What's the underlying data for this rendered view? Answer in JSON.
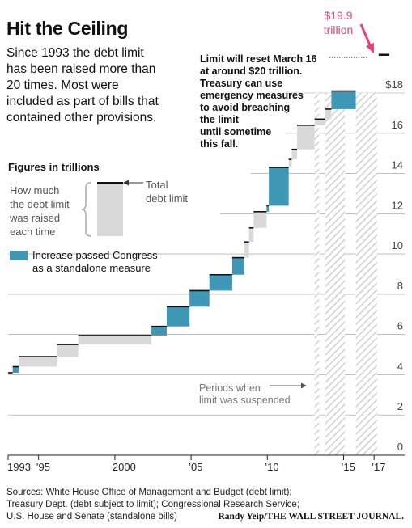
{
  "header": {
    "title": "Hit the Ceiling",
    "subtitle": "Since 1993 the debt limit\nhas been raised more than\n20 times. Most were\nincluded as part of bills that\ncontained other provisions."
  },
  "legend": {
    "units": "Figures in trillions",
    "raise_label": "How much\nthe debt limit\nwas raised\neach time",
    "total_label": "Total\ndebt limit",
    "standalone_label": "Increase passed Congress\nas a standalone measure"
  },
  "annotations": {
    "note": "Limit will reset March 16\nat around $20 trillion.\nTreasury can use\nemergency measures\nto avoid breaching\nthe limit\nuntil sometime\nthis fall.",
    "callout": "$19.9\ntrillion",
    "suspended": "Periods when\nlimit was suspended"
  },
  "footer": {
    "sources": "Sources: White House Office of Management and Budget (debt limit);\nTreasury Dept. (debt subject to limit); Congressional Research Service;\nU.S. House and Senate (standalone bills)",
    "credit": "Randy Yeip/THE WALL STREET JOURNAL."
  },
  "colors": {
    "raise": "#d9d9d9",
    "standalone": "#3e97b4",
    "limit_line": "#111111",
    "callout": "#e8427a",
    "grid": "#999999",
    "hatch": "#cfcfcf"
  },
  "chart_data": {
    "type": "area",
    "ylim": [
      0,
      18
    ],
    "xlim": [
      1993,
      2018
    ],
    "y_ticks": [
      "0",
      "2",
      "4",
      "6",
      "8",
      "10",
      "12",
      "14",
      "16",
      "$18"
    ],
    "x_ticks": [
      "1993",
      "’95",
      "2000",
      "’05",
      "’10",
      "’15",
      "’17"
    ],
    "grid": true,
    "steps": [
      {
        "start": 1993.0,
        "end": 1993.3,
        "from": 4.0,
        "to": 4.1,
        "standalone": false
      },
      {
        "start": 1993.3,
        "end": 1993.7,
        "from": 4.1,
        "to": 4.4,
        "standalone": true
      },
      {
        "start": 1993.7,
        "end": 1996.2,
        "from": 4.4,
        "to": 4.9,
        "standalone": false
      },
      {
        "start": 1996.2,
        "end": 1997.6,
        "from": 4.9,
        "to": 5.5,
        "standalone": false
      },
      {
        "start": 1997.6,
        "end": 2002.4,
        "from": 5.5,
        "to": 5.95,
        "standalone": false
      },
      {
        "start": 2002.4,
        "end": 2003.4,
        "from": 5.95,
        "to": 6.4,
        "standalone": true
      },
      {
        "start": 2003.4,
        "end": 2004.9,
        "from": 6.4,
        "to": 7.38,
        "standalone": true
      },
      {
        "start": 2004.9,
        "end": 2006.2,
        "from": 7.38,
        "to": 8.18,
        "standalone": true
      },
      {
        "start": 2006.2,
        "end": 2007.7,
        "from": 8.18,
        "to": 8.97,
        "standalone": true
      },
      {
        "start": 2007.7,
        "end": 2008.5,
        "from": 8.97,
        "to": 9.82,
        "standalone": true
      },
      {
        "start": 2008.5,
        "end": 2008.8,
        "from": 9.82,
        "to": 10.6,
        "standalone": false
      },
      {
        "start": 2008.8,
        "end": 2009.1,
        "from": 10.6,
        "to": 11.3,
        "standalone": false
      },
      {
        "start": 2009.1,
        "end": 2009.95,
        "from": 11.3,
        "to": 12.1,
        "standalone": false
      },
      {
        "start": 2009.95,
        "end": 2010.1,
        "from": 12.1,
        "to": 12.4,
        "standalone": true
      },
      {
        "start": 2010.1,
        "end": 2011.4,
        "from": 12.4,
        "to": 14.3,
        "standalone": true
      },
      {
        "start": 2011.4,
        "end": 2011.6,
        "from": 14.3,
        "to": 14.7,
        "standalone": false
      },
      {
        "start": 2011.6,
        "end": 2011.95,
        "from": 14.7,
        "to": 15.2,
        "standalone": false
      },
      {
        "start": 2011.95,
        "end": 2013.1,
        "from": 15.2,
        "to": 16.4,
        "standalone": false
      },
      {
        "start": 2013.1,
        "end": 2013.8,
        "from": 16.4,
        "to": 16.7,
        "standalone": false
      },
      {
        "start": 2013.8,
        "end": 2014.2,
        "from": 16.7,
        "to": 17.2,
        "standalone": false
      },
      {
        "start": 2014.2,
        "end": 2015.8,
        "from": 17.2,
        "to": 18.1,
        "standalone": true
      }
    ],
    "suspended_periods": [
      [
        2013.1,
        2013.4
      ],
      [
        2013.8,
        2014.2
      ],
      [
        2014.2,
        2015.1
      ],
      [
        2015.8,
        2017.2
      ]
    ],
    "future_limit": {
      "start": 2017.3,
      "end": 2018.0,
      "value": 19.9
    }
  }
}
